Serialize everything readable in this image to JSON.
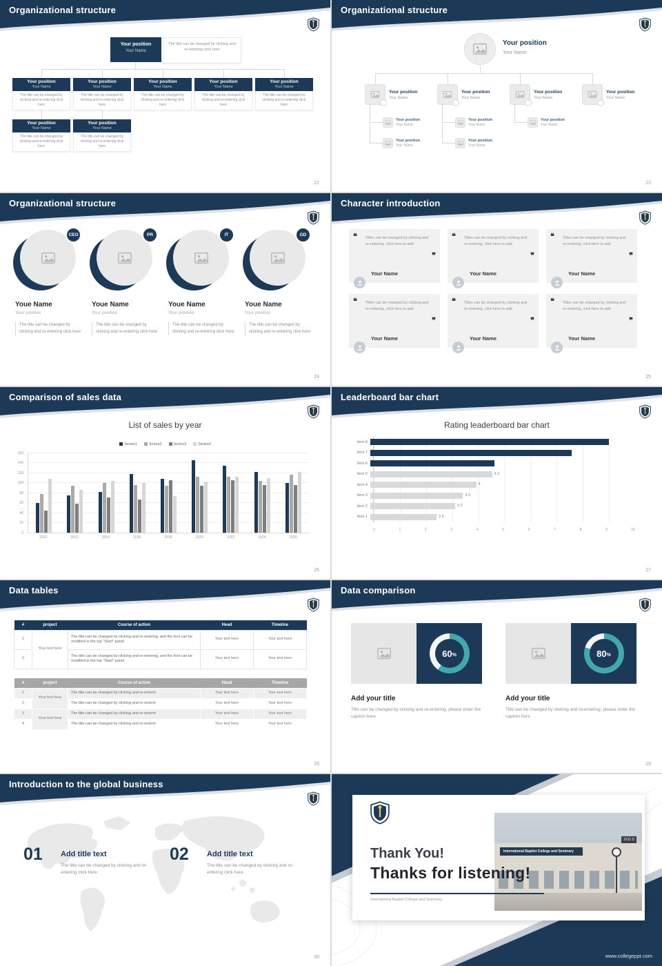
{
  "common": {
    "position_label": "Your position",
    "name_label": "Your Name",
    "box_note": "The title can be changed by clicking and re-entering click here",
    "quote_open": "❝",
    "quote_close": "❞"
  },
  "s22": {
    "title": "Organizational structure",
    "page": "22"
  },
  "s23": {
    "title": "Organizational structure",
    "page": "23"
  },
  "s24": {
    "title": "Organizational structure",
    "page": "24",
    "roles": [
      "CEO",
      "PR",
      "IT",
      "GD"
    ],
    "member_name": "Youe Name",
    "member_position": "Your position",
    "member_note": "The title can be changed by clicking and re-entering click here"
  },
  "s25": {
    "title": "Character introduction",
    "page": "25",
    "quote": "Titles can be changed by clicking and re-entering, click here to add",
    "name": "Your Name"
  },
  "s26": {
    "title": "Comparison of sales data",
    "page": "26"
  },
  "s27": {
    "title": "Leaderboard bar chart",
    "page": "27"
  },
  "s28": {
    "title": "Data tables",
    "page": "28",
    "headers": [
      "#",
      "project",
      "Course of action",
      "Head",
      "Timeline"
    ],
    "t1_rows": [
      "1",
      "2"
    ],
    "t2_rows": [
      "1",
      "2",
      "3",
      "4"
    ],
    "t1_course": "The title can be changed by clicking and re-entering, and the font can be modified in the top \"Start\" panel",
    "t2_course": "The title can be changed by clicking and re-enterin",
    "cell": "Your text here"
  },
  "s29": {
    "title": "Data comparison",
    "page": "29",
    "heading": "Add your title",
    "caption": "Title can be changed by clicking and re-entering, please enter the caption here",
    "pct_suffix": "%",
    "panels": [
      {
        "pct": 60
      },
      {
        "pct": 80
      }
    ]
  },
  "s30": {
    "title": "Introduction to the global business",
    "page": "30",
    "items": [
      {
        "num": "01",
        "heading": "Add title text",
        "body": "The title can be changed by clicking and re-entering click here"
      },
      {
        "num": "02",
        "heading": "Add title text",
        "body": "The title can be changed by clicking and re-entering click here"
      }
    ]
  },
  "s31": {
    "thank_line1": "Thank You!",
    "thank_line2": "Thanks for listening!",
    "caption": "International Baptist College and Seminary",
    "url": "www.collegeppt.com",
    "photo_sign": "International Baptist College and Seminary",
    "photo_plaque": "2211 D"
  },
  "chart_data": [
    {
      "type": "bar",
      "title": "List of sales by year",
      "categories": [
        "2010",
        "2012",
        "2014",
        "2016",
        "2018",
        "2020",
        "2022",
        "2024",
        "2026"
      ],
      "series": [
        {
          "name": "Series1",
          "color": "#1c3a57",
          "values": [
            60,
            75,
            82,
            118,
            108,
            146,
            134,
            122,
            100
          ]
        },
        {
          "name": "Series2",
          "color": "#a9a9a9",
          "values": [
            78,
            94,
            100,
            96,
            94,
            112,
            112,
            104,
            116
          ]
        },
        {
          "name": "Series3",
          "color": "#7e7e7e",
          "values": [
            44,
            58,
            70,
            66,
            106,
            94,
            106,
            96,
            96
          ]
        },
        {
          "name": "Series4",
          "color": "#d6d6d6",
          "values": [
            108,
            86,
            104,
            100,
            74,
            102,
            112,
            110,
            122
          ]
        }
      ],
      "ylim": [
        0,
        160
      ],
      "ystep": 20,
      "grid": true,
      "legend_position": "top"
    },
    {
      "type": "bar-horizontal",
      "title": "Rating leaderboard bar chart",
      "categories": [
        "Item 8",
        "Item 7",
        "Item 6",
        "Item 5",
        "Item 4",
        "Item 3",
        "Item 2",
        "Item 1"
      ],
      "values": [
        9,
        7.6,
        4.7,
        4.6,
        4,
        3.5,
        3.2,
        2.5
      ],
      "labels": [
        "",
        "",
        "",
        "4.6",
        "4",
        "3.5",
        "3.2",
        "2.5"
      ],
      "colors": [
        "#1c3a57",
        "#1c3a57",
        "#1c3a57",
        "#d9d9d9",
        "#d9d9d9",
        "#d9d9d9",
        "#d9d9d9",
        "#d9d9d9"
      ],
      "xlim": [
        0,
        10
      ],
      "xstep": 1,
      "grid": true
    }
  ]
}
